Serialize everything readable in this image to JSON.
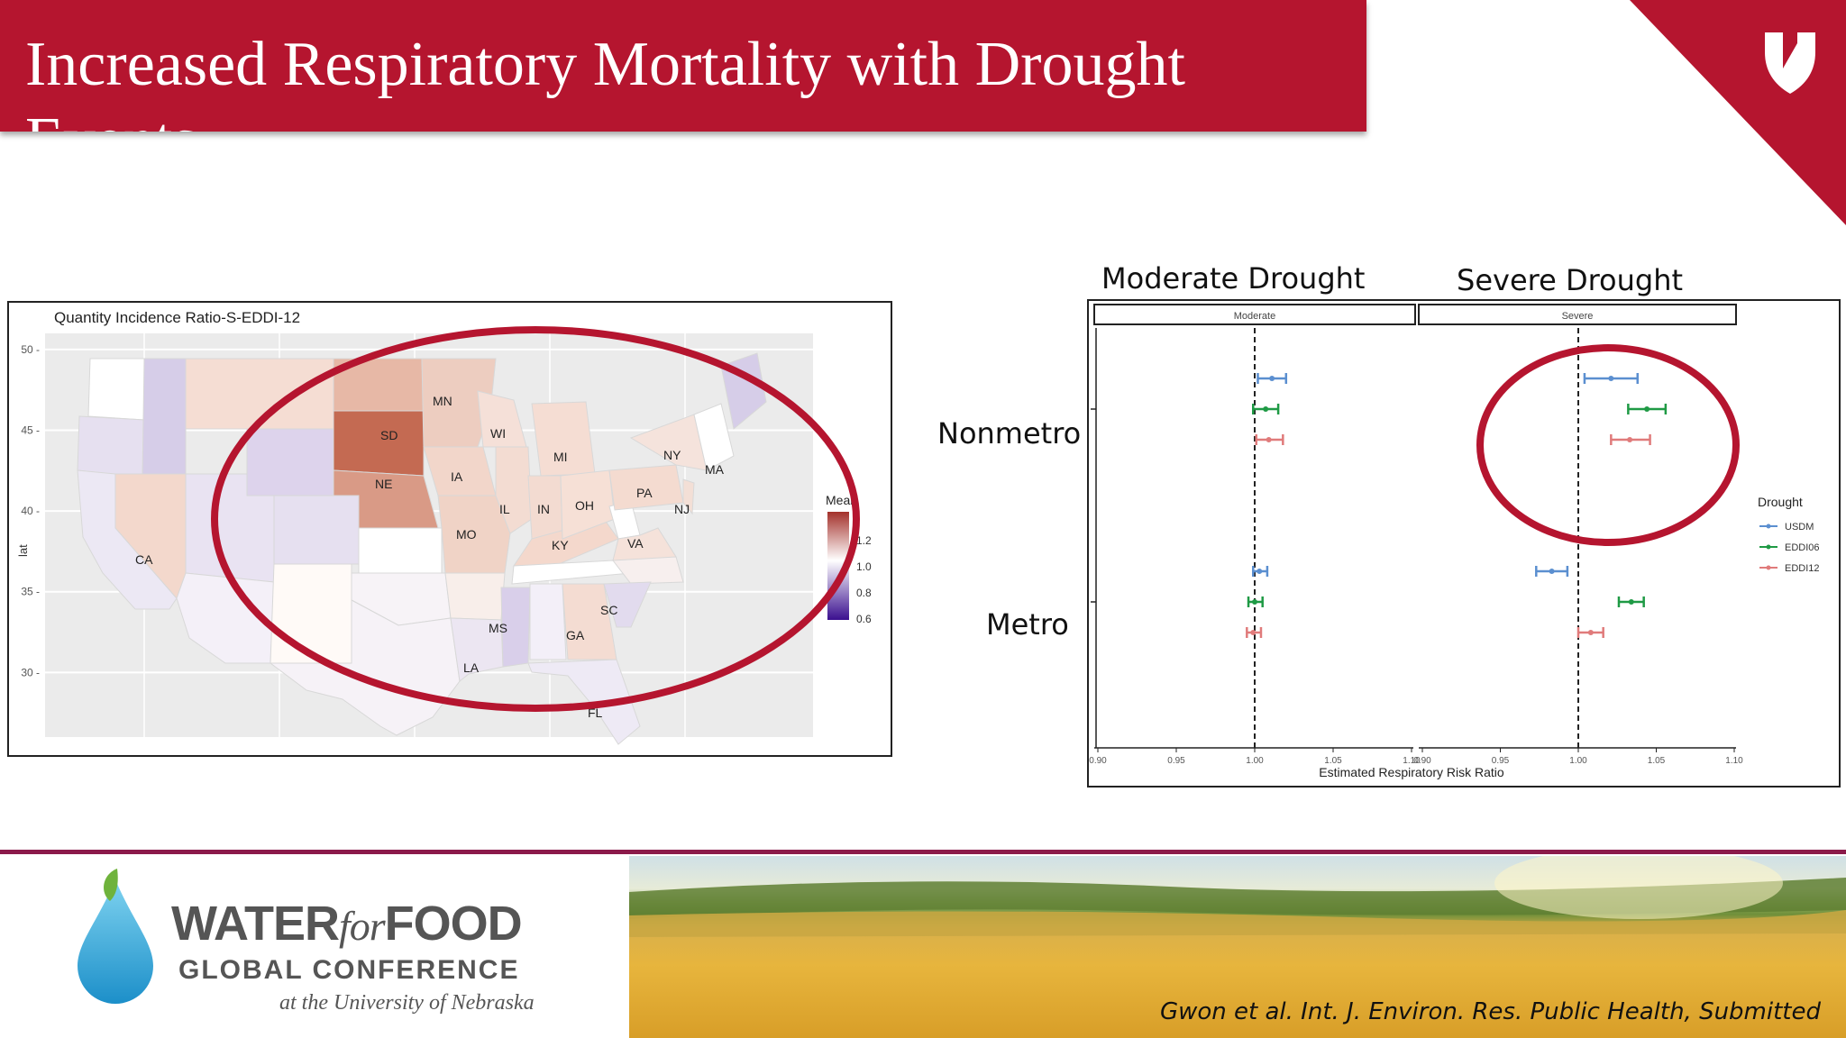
{
  "slide": {
    "title": "Increased Respiratory Mortality with Drought Events",
    "header_moderate": "Moderate Drought",
    "header_severe": "Severe Drought",
    "row_nonmetro": "Nonmetro",
    "row_metro": "Metro",
    "citation": "Gwon et al. Int. J. Environ. Res. Public Health, Submitted",
    "accent_color": "#b5152f"
  },
  "footer": {
    "logo_water": "WATER",
    "logo_for": "for",
    "logo_food": "FOOD",
    "logo_line2": "GLOBAL CONFERENCE",
    "logo_line3": "at the University of Nebraska"
  },
  "chart_data": [
    {
      "type": "heatmap",
      "title": "Quantity Incidence Ratio-S-EDDI-12",
      "ylabel": "lat",
      "yticks": [
        30,
        35,
        40,
        45,
        50
      ],
      "ylim": [
        26,
        51
      ],
      "legend": {
        "title": "Mean",
        "ticks": [
          "1.2",
          "1.0",
          "0.8",
          "0.6"
        ],
        "low_color": "#3a0f8f",
        "mid_color": "#ffffff",
        "high_color": "#a3302a"
      },
      "state_labels": [
        "SD",
        "MN",
        "WI",
        "MI",
        "NY",
        "MA",
        "IA",
        "NE",
        "IL",
        "IN",
        "OH",
        "PA",
        "NJ",
        "MO",
        "KY",
        "VA",
        "CA",
        "MS",
        "SC",
        "GA",
        "LA",
        "FL"
      ]
    },
    {
      "type": "forest",
      "xlabel": "Estimated Respiratory Risk Ratio",
      "xticks": [
        "0.90",
        "0.95",
        "1.00",
        "1.05",
        "1.10"
      ],
      "xlim": [
        0.9,
        1.1
      ],
      "reference_line": 1.0,
      "panels": [
        "Moderate",
        "Severe"
      ],
      "legend_title": "Drought",
      "series": [
        {
          "name": "USDM",
          "color": "#5b8fd0"
        },
        {
          "name": "EDDI06",
          "color": "#1f9a45"
        },
        {
          "name": "EDDI12",
          "color": "#e07b7b"
        }
      ],
      "estimates": {
        "Moderate": {
          "Nonmetro": {
            "USDM": [
              1.002,
              1.011,
              1.02
            ],
            "EDDI06": [
              0.999,
              1.007,
              1.015
            ],
            "EDDI12": [
              1.001,
              1.009,
              1.018
            ]
          },
          "Metro": {
            "USDM": [
              0.999,
              1.003,
              1.008
            ],
            "EDDI06": [
              0.996,
              1.0,
              1.005
            ],
            "EDDI12": [
              0.995,
              0.999,
              1.004
            ]
          }
        },
        "Severe": {
          "Nonmetro": {
            "USDM": [
              1.004,
              1.021,
              1.038
            ],
            "EDDI06": [
              1.032,
              1.044,
              1.056
            ],
            "EDDI12": [
              1.021,
              1.033,
              1.046
            ]
          },
          "Metro": {
            "USDM": [
              0.973,
              0.983,
              0.993
            ],
            "EDDI06": [
              1.026,
              1.034,
              1.042
            ],
            "EDDI12": [
              1.0,
              1.008,
              1.016
            ]
          }
        }
      }
    }
  ]
}
